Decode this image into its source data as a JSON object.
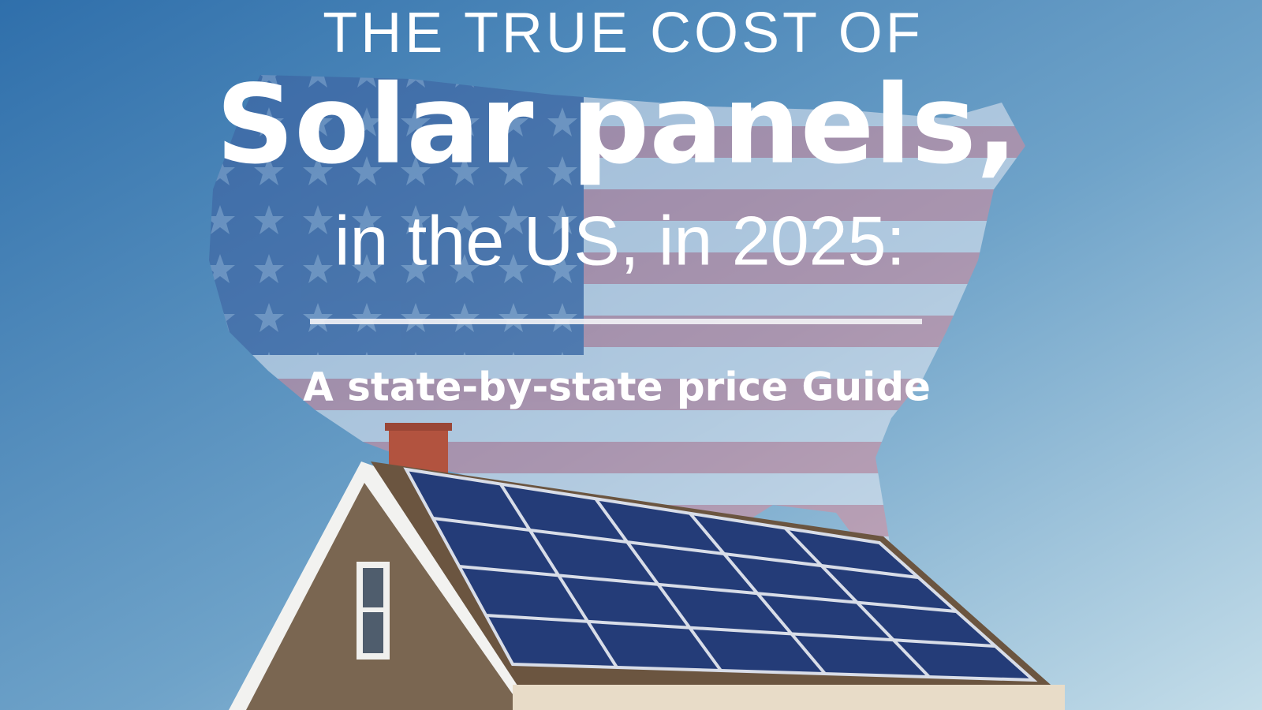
{
  "header": {
    "kicker": "THE TRUE COST OF",
    "title": "Solar panels,",
    "subtitle": "in the US, in 2025:",
    "tagline": "A state-by-state price Guide"
  }
}
